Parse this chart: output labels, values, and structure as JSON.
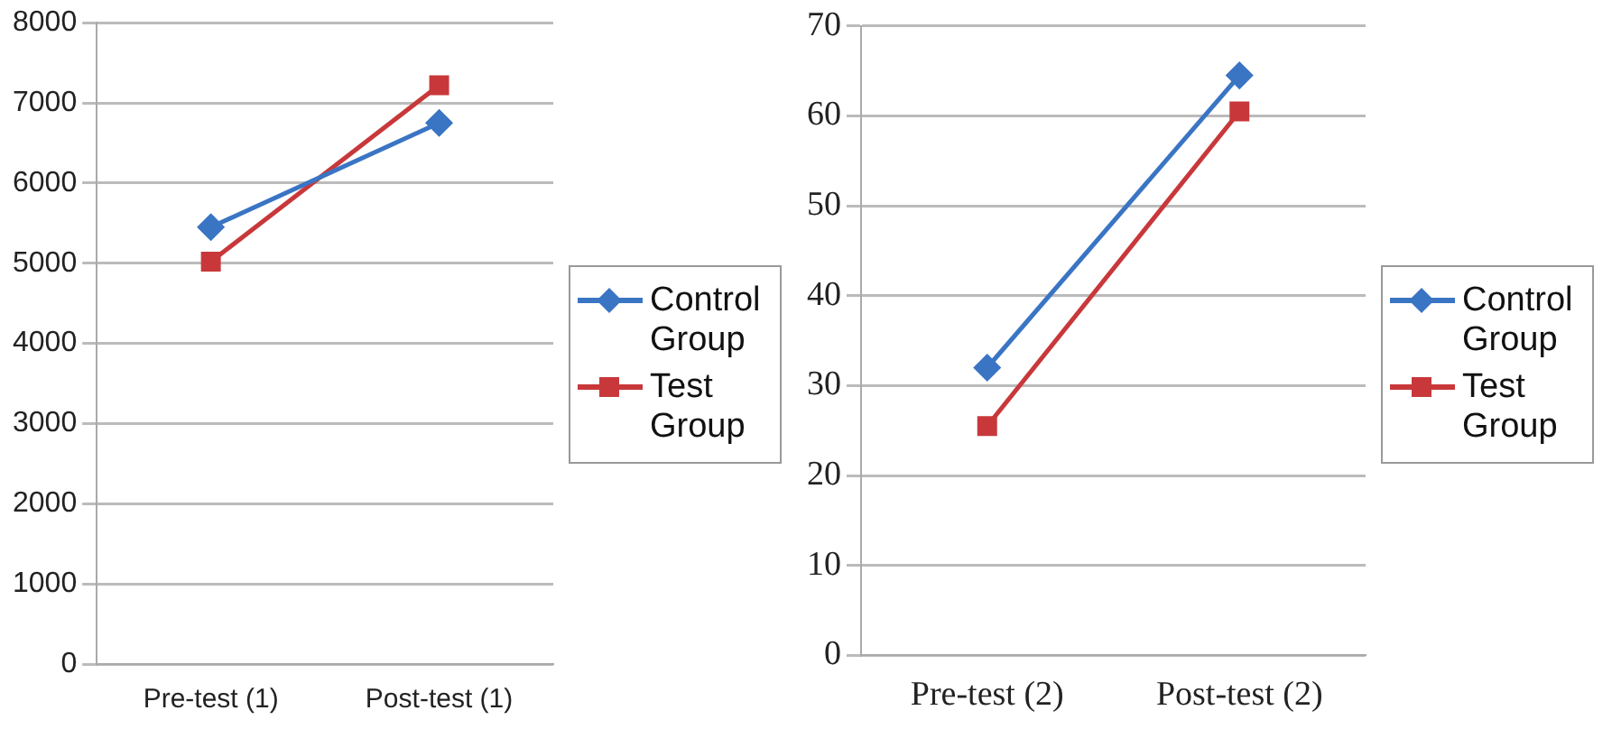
{
  "chart_data": [
    {
      "type": "line",
      "categories": [
        "Pre-test (1)",
        "Post-test (1)"
      ],
      "series": [
        {
          "name": "Control Group",
          "color": "#3a75c4",
          "values": [
            5450,
            6750
          ],
          "marker": "diamond"
        },
        {
          "name": "Test Group",
          "color": "#c8383a",
          "values": [
            5020,
            7220
          ],
          "marker": "square"
        }
      ],
      "ylim": [
        0,
        8000
      ],
      "yticks": [
        0,
        1000,
        2000,
        3000,
        4000,
        5000,
        6000,
        7000,
        8000
      ],
      "grid": "y",
      "legend": "right"
    },
    {
      "type": "line",
      "categories": [
        "Pre-test (2)",
        "Post-test (2)"
      ],
      "series": [
        {
          "name": "Control Group",
          "color": "#3a75c4",
          "values": [
            32,
            64.5
          ],
          "marker": "diamond"
        },
        {
          "name": "Test Group",
          "color": "#c8383a",
          "values": [
            25.5,
            60.5
          ],
          "marker": "square"
        }
      ],
      "ylim": [
        0,
        70
      ],
      "yticks": [
        0,
        10,
        20,
        30,
        40,
        50,
        60,
        70
      ],
      "grid": "y",
      "legend": "right"
    }
  ]
}
